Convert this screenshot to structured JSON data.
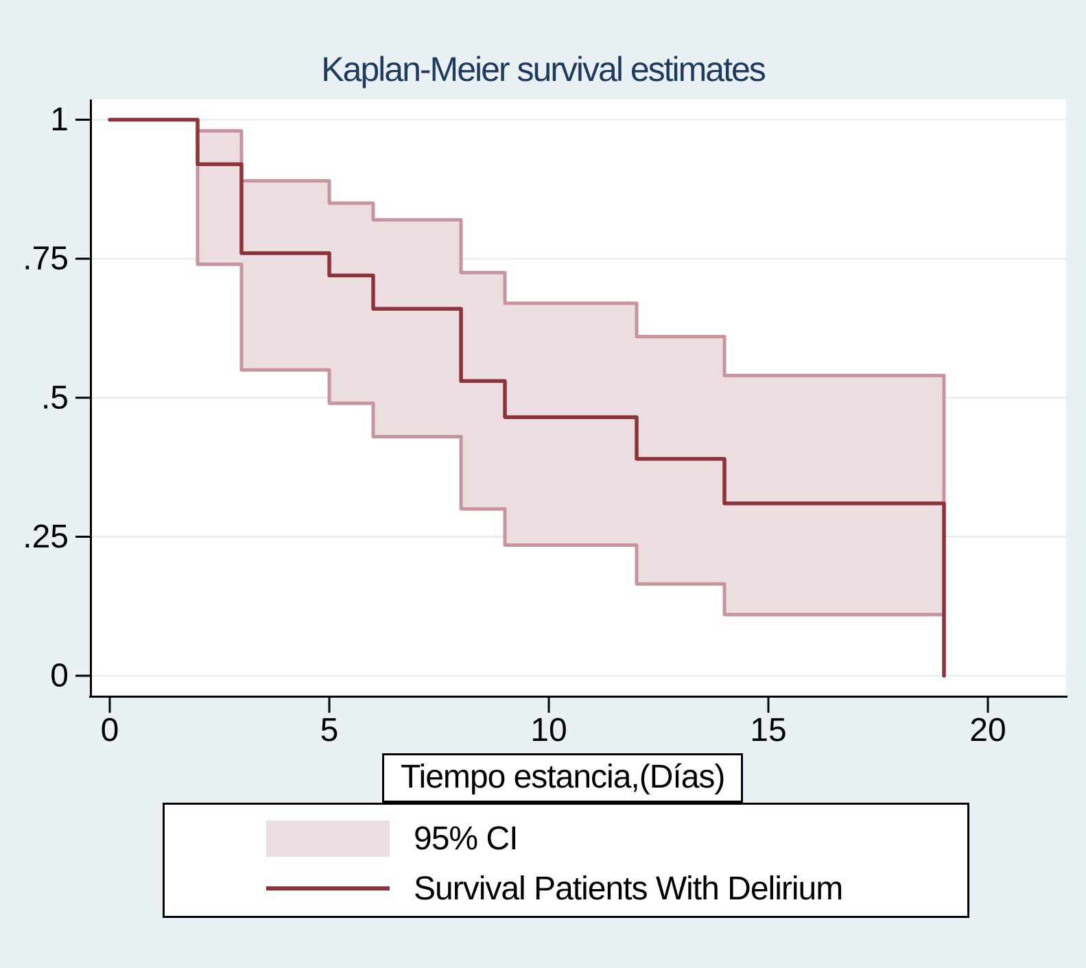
{
  "title": {
    "text": "Kaplan-Meier survival estimates",
    "color": "#1E3A5F"
  },
  "legend": {
    "items": [
      {
        "swatch": "area",
        "label": "95% CI"
      },
      {
        "swatch": "line",
        "label": "Survival Patients With Delirium"
      }
    ]
  },
  "colors": {
    "survival_line": "#8D333C",
    "ci_fill": "#EDDFE1",
    "ci_edge": "#C6959E",
    "background": "#EAF1F4",
    "plot_background": "#FFFFFF",
    "gridline": "#E4EDF2",
    "axis": "#000000",
    "title": "#1E3A5F"
  },
  "chart_data": {
    "type": "line",
    "variant": "kaplan-meier-step",
    "title": "Kaplan-Meier survival estimates",
    "xlabel": "Tiempo estancia,(Días)",
    "ylabel": "",
    "xlim": [
      -0.45,
      21.8
    ],
    "ylim": [
      0,
      1.04
    ],
    "grid": "horizontal",
    "legend_position": "below",
    "xticks": {
      "labels": [
        "0",
        "5",
        "10",
        "15",
        "20"
      ],
      "values": [
        0,
        5,
        10,
        15,
        20
      ]
    },
    "yticks": {
      "labels": [
        "1",
        ".75",
        ".5",
        ".25",
        "0"
      ],
      "values": [
        1,
        0.75,
        0.5,
        0.25,
        0
      ]
    },
    "series": [
      {
        "name": "Survival Patients With Delirium",
        "type": "step",
        "x": [
          0,
          2,
          3,
          5,
          6,
          8,
          9,
          12,
          14,
          19
        ],
        "y": [
          1,
          0.92,
          0.76,
          0.72,
          0.66,
          0.53,
          0.465,
          0.39,
          0.31,
          0
        ]
      },
      {
        "name": "95% CI",
        "type": "step-band",
        "x": [
          2,
          3,
          5,
          6,
          8,
          9,
          12,
          14,
          19
        ],
        "lower": [
          0.74,
          0.55,
          0.49,
          0.43,
          0.3,
          0.235,
          0.165,
          0.11
        ],
        "upper": [
          0.98,
          0.89,
          0.85,
          0.82,
          0.725,
          0.67,
          0.61,
          0.54
        ]
      }
    ]
  }
}
